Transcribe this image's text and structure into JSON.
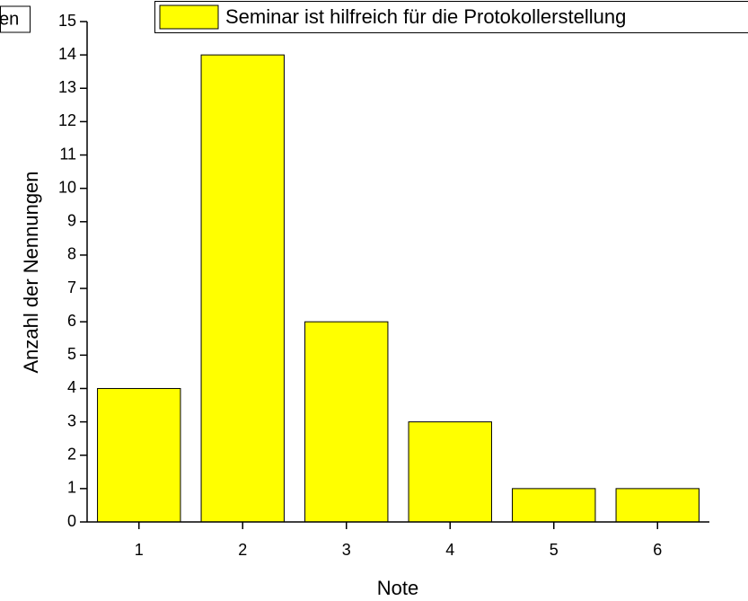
{
  "chart_data": {
    "type": "bar",
    "x": [
      1,
      2,
      3,
      4,
      5,
      6
    ],
    "series": [
      {
        "name": "Seminar ist hilfreich für die Protokollerstellung",
        "color": "#ffff00",
        "values": [
          4,
          14,
          6,
          3,
          1,
          1
        ]
      }
    ],
    "xlabel": "Note",
    "ylabel": "Anzahl der Nennungen",
    "xlim": [
      0.5,
      6.5
    ],
    "xticks": [
      1,
      2,
      3,
      4,
      5,
      6
    ],
    "ylim": [
      0,
      15
    ],
    "yticks": [
      0,
      1,
      2,
      3,
      4,
      5,
      6,
      7,
      8,
      9,
      10,
      11,
      12,
      13,
      14,
      15
    ],
    "annotation": "en",
    "legend": "top"
  }
}
